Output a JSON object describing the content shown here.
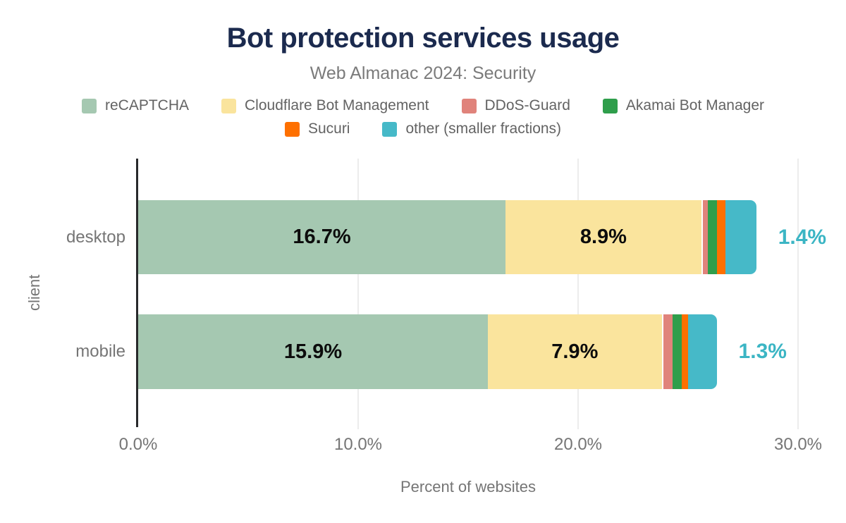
{
  "header": {
    "title": "Bot protection services usage",
    "subtitle": "Web Almanac 2024: Security"
  },
  "chart_data": {
    "type": "bar",
    "orientation": "horizontal",
    "stacked": true,
    "title": "Bot protection services usage",
    "subtitle": "Web Almanac 2024: Security",
    "xlabel": "Percent of websites",
    "ylabel": "client",
    "categories": [
      "desktop",
      "mobile"
    ],
    "series": [
      {
        "name": "reCAPTCHA",
        "color": "#a5c8b1",
        "values": [
          16.7,
          15.9
        ]
      },
      {
        "name": "Cloudflare Bot Management",
        "color": "#fae49d",
        "values": [
          8.9,
          7.9
        ]
      },
      {
        "name": "DDoS-Guard",
        "color": "#e0837b",
        "values": [
          0.3,
          0.5
        ]
      },
      {
        "name": "Akamai Bot Manager",
        "color": "#2f9e4b",
        "values": [
          0.4,
          0.4
        ]
      },
      {
        "name": "Sucuri",
        "color": "#fe7000",
        "values": [
          0.4,
          0.3
        ]
      },
      {
        "name": "other (smaller fractions)",
        "color": "#46b9c8",
        "values": [
          1.4,
          1.3
        ]
      }
    ],
    "inside_labels": [
      [
        "16.7%",
        "8.9%"
      ],
      [
        "15.9%",
        "7.9%"
      ]
    ],
    "outside_labels": [
      "1.4%",
      "1.3%"
    ],
    "x_ticks": [
      "0.0%",
      "10.0%",
      "20.0%",
      "30.0%"
    ],
    "x_tick_values": [
      0,
      10,
      20,
      30
    ],
    "xlim": [
      0,
      30
    ],
    "grid": true,
    "legend_position": "top",
    "legend_rows": [
      [
        0,
        1,
        2,
        3
      ],
      [
        4,
        5
      ]
    ]
  },
  "colors": {
    "title": "#1b2a4e",
    "subtitle": "#7b7b7b",
    "axis": "#28292b",
    "grid": "#ececec",
    "tick_label": "#757575",
    "inside_label": "#0c0c0c",
    "outside_label": "#3bb5c4",
    "legend_label": "#636363"
  }
}
